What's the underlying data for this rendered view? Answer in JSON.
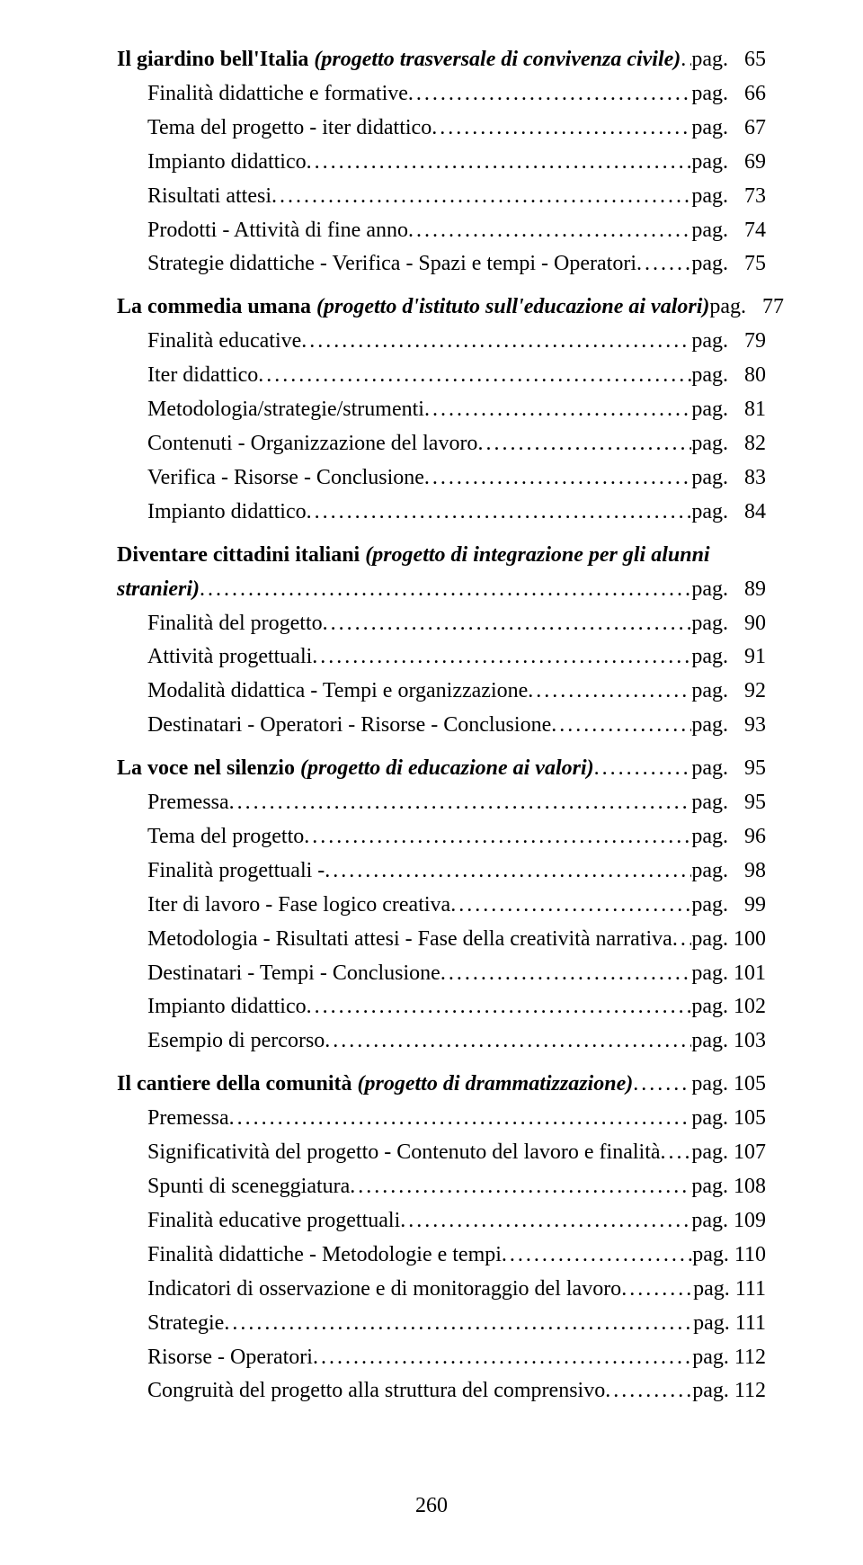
{
  "pageNumber": "260",
  "sections": [
    {
      "head": {
        "textPlain": "Il giardino bell'Italia",
        "textItalic": " (progetto trasversale di convivenza civile)",
        "page": "65"
      },
      "subs": [
        {
          "text": "Finalità didattiche e formative",
          "page": "66"
        },
        {
          "text": "Tema del progetto - iter didattico",
          "page": "67"
        },
        {
          "text": "Impianto didattico",
          "page": "69"
        },
        {
          "text": "Risultati attesi",
          "page": "73"
        },
        {
          "text": "Prodotti - Attività di fine anno",
          "page": "74"
        },
        {
          "text": "Strategie didattiche - Verifica - Spazi e tempi - Operatori",
          "page": "75"
        }
      ]
    },
    {
      "head": {
        "textPlain": "La commedia umana",
        "textItalic": " (progetto d'istituto sull'educazione ai valori)",
        "page": "77"
      },
      "subs": [
        {
          "text": "Finalità educative",
          "page": "79"
        },
        {
          "text": "Iter didattico",
          "page": "80"
        },
        {
          "text": "Metodologia/strategie/strumenti",
          "page": "81"
        },
        {
          "text": "Contenuti - Organizzazione del lavoro",
          "page": "82"
        },
        {
          "text": "Verifica - Risorse - Conclusione",
          "page": "83"
        },
        {
          "text": "Impianto didattico",
          "page": "84"
        }
      ]
    },
    {
      "headWrap": {
        "line1Plain": "Diventare cittadini italiani",
        "line1Italic": " (progetto di integrazione per gli alunni",
        "line2Italic": "stranieri)",
        "page": "89"
      },
      "subs": [
        {
          "text": "Finalità del progetto",
          "page": "90"
        },
        {
          "text": "Attività progettuali",
          "page": "91"
        },
        {
          "text": "Modalità didattica - Tempi e organizzazione",
          "page": "92"
        },
        {
          "text": "Destinatari - Operatori - Risorse - Conclusione",
          "page": "93"
        }
      ]
    },
    {
      "head": {
        "textPlain": "La voce nel silenzio",
        "textItalic": " (progetto di educazione ai valori)",
        "page": "95"
      },
      "subs": [
        {
          "text": "Premessa",
          "page": "95"
        },
        {
          "text": "Tema del progetto",
          "page": "96"
        },
        {
          "text": "Finalità progettuali -",
          "page": "98"
        },
        {
          "text": "Iter di lavoro - Fase logico creativa",
          "page": "99"
        },
        {
          "text": "Metodologia - Risultati attesi - Fase della creatività narrativa",
          "page": "100"
        },
        {
          "text": "Destinatari - Tempi - Conclusione",
          "page": "101"
        },
        {
          "text": "Impianto didattico",
          "page": "102"
        },
        {
          "text": "Esempio di percorso",
          "page": "103"
        }
      ]
    },
    {
      "head": {
        "textPlain": "Il cantiere della comunità",
        "textItalic": " (progetto di drammatizzazione)",
        "page": "105"
      },
      "subs": [
        {
          "text": "Premessa",
          "page": "105"
        },
        {
          "text": "Significatività del progetto - Contenuto del lavoro e finalità",
          "page": "107"
        },
        {
          "text": "Spunti di sceneggiatura",
          "page": "108"
        },
        {
          "text": "Finalità educative progettuali",
          "page": "109"
        },
        {
          "text": "Finalità didattiche - Metodologie e tempi",
          "page": "110"
        },
        {
          "text": "Indicatori di osservazione e di monitoraggio del lavoro",
          "page": "111"
        },
        {
          "text": "Strategie",
          "page": "111"
        },
        {
          "text": "Risorse - Operatori",
          "page": "112"
        },
        {
          "text": "Congruità del progetto alla struttura del comprensivo",
          "page": "112"
        }
      ]
    }
  ],
  "pagPrefix": "pag.",
  "colors": {
    "background": "#ffffff",
    "text": "#000000"
  },
  "typography": {
    "family": "Times New Roman",
    "fontSize": 24,
    "lineHeight": 1.58
  }
}
